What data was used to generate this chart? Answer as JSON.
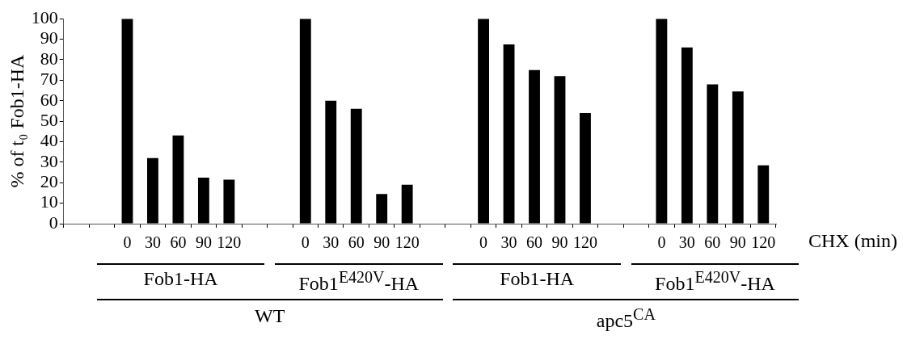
{
  "chart_data": {
    "type": "bar",
    "ylabel": "% of t₀ Fob1-HA",
    "xlabel": "CHX (min)",
    "categories": [
      null,
      null,
      "0",
      "30",
      "60",
      "90",
      "120",
      null,
      null,
      "0",
      "30",
      "60",
      "90",
      "120",
      null,
      null,
      "0",
      "30",
      "60",
      "90",
      "120",
      null,
      null,
      "0",
      "30",
      "60",
      "90",
      "120"
    ],
    "values": [
      null,
      null,
      100,
      32,
      43,
      22.5,
      21.5,
      null,
      null,
      100,
      60,
      56,
      14.5,
      19,
      null,
      null,
      100,
      87.5,
      75,
      72,
      54,
      null,
      null,
      100,
      86,
      68,
      64.5,
      28.5
    ],
    "color": "#000000",
    "ylim": [
      0,
      100
    ],
    "yticks": [
      0,
      10,
      20,
      30,
      40,
      50,
      60,
      70,
      80,
      90,
      100
    ],
    "annotations": [
      "Fob1-HA",
      "Fob1$^{E420V}$-HA",
      "Fob1-HA",
      "Fob1$^{E420V}$-HA",
      "WT",
      "apc5$^{CA}$"
    ]
  }
}
